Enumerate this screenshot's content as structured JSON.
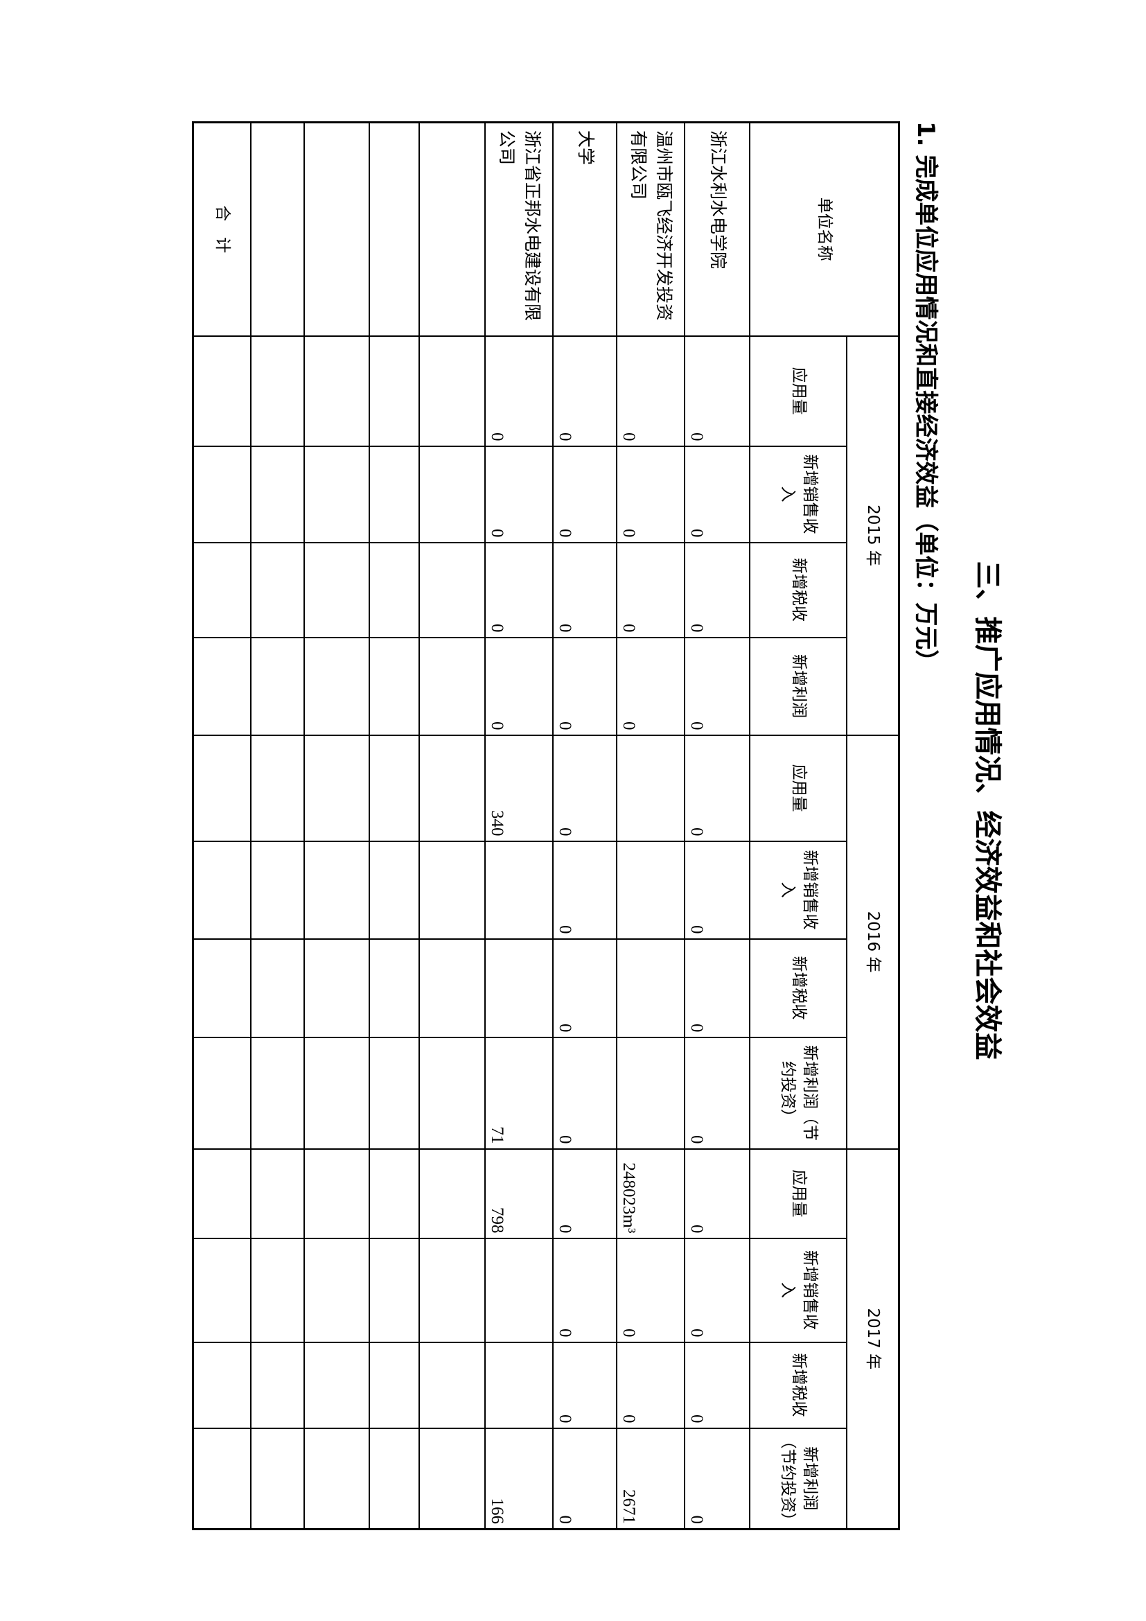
{
  "title": "三、推广应用情况、经济效益和社会效益",
  "subtitle": "1. 完成单位应用情况和直接经济效益（单位：万元）",
  "table": {
    "name_header": "单位名称",
    "years": [
      "2015 年",
      "2016 年",
      "2017 年"
    ],
    "subheaders": [
      [
        "应用量",
        "新增销售收入",
        "新增税收",
        "新增利润"
      ],
      [
        "应用量",
        "新增销售收入",
        "新增税收",
        "新增利润（节约投资）"
      ],
      [
        "应用量",
        "新增销售收入",
        "新增税收",
        "新增利润（节约投资）"
      ]
    ],
    "rows": [
      {
        "name": "浙江水利水电学院",
        "values": [
          "0",
          "0",
          "0",
          "0",
          "0",
          "0",
          "0",
          "0",
          "0",
          "0",
          "0",
          "0"
        ]
      },
      {
        "name": "温州市瓯飞经济开发投资有限公司",
        "values": [
          "0",
          "0",
          "0",
          "0",
          "",
          "",
          "",
          "",
          "248023m³",
          "0",
          "0",
          "2671"
        ]
      },
      {
        "name": "大学",
        "values": [
          "0",
          "0",
          "0",
          "0",
          "0",
          "0",
          "0",
          "0",
          "0",
          "0",
          "0",
          "0"
        ]
      },
      {
        "name": "浙江省正邦水电建设有限公司",
        "values": [
          "0",
          "0",
          "0",
          "0",
          "340",
          "",
          "",
          "71",
          "798",
          "",
          "",
          "166"
        ]
      },
      {
        "name": "",
        "values": [
          "",
          "",
          "",
          "",
          "",
          "",
          "",
          "",
          "",
          "",
          "",
          ""
        ]
      },
      {
        "name": "",
        "values": [
          "",
          "",
          "",
          "",
          "",
          "",
          "",
          "",
          "",
          "",
          "",
          ""
        ]
      },
      {
        "name": "",
        "values": [
          "",
          "",
          "",
          "",
          "",
          "",
          "",
          "",
          "",
          "",
          "",
          ""
        ]
      },
      {
        "name": "",
        "values": [
          "",
          "",
          "",
          "",
          "",
          "",
          "",
          "",
          "",
          "",
          "",
          ""
        ]
      }
    ],
    "total_label": "合　计"
  }
}
